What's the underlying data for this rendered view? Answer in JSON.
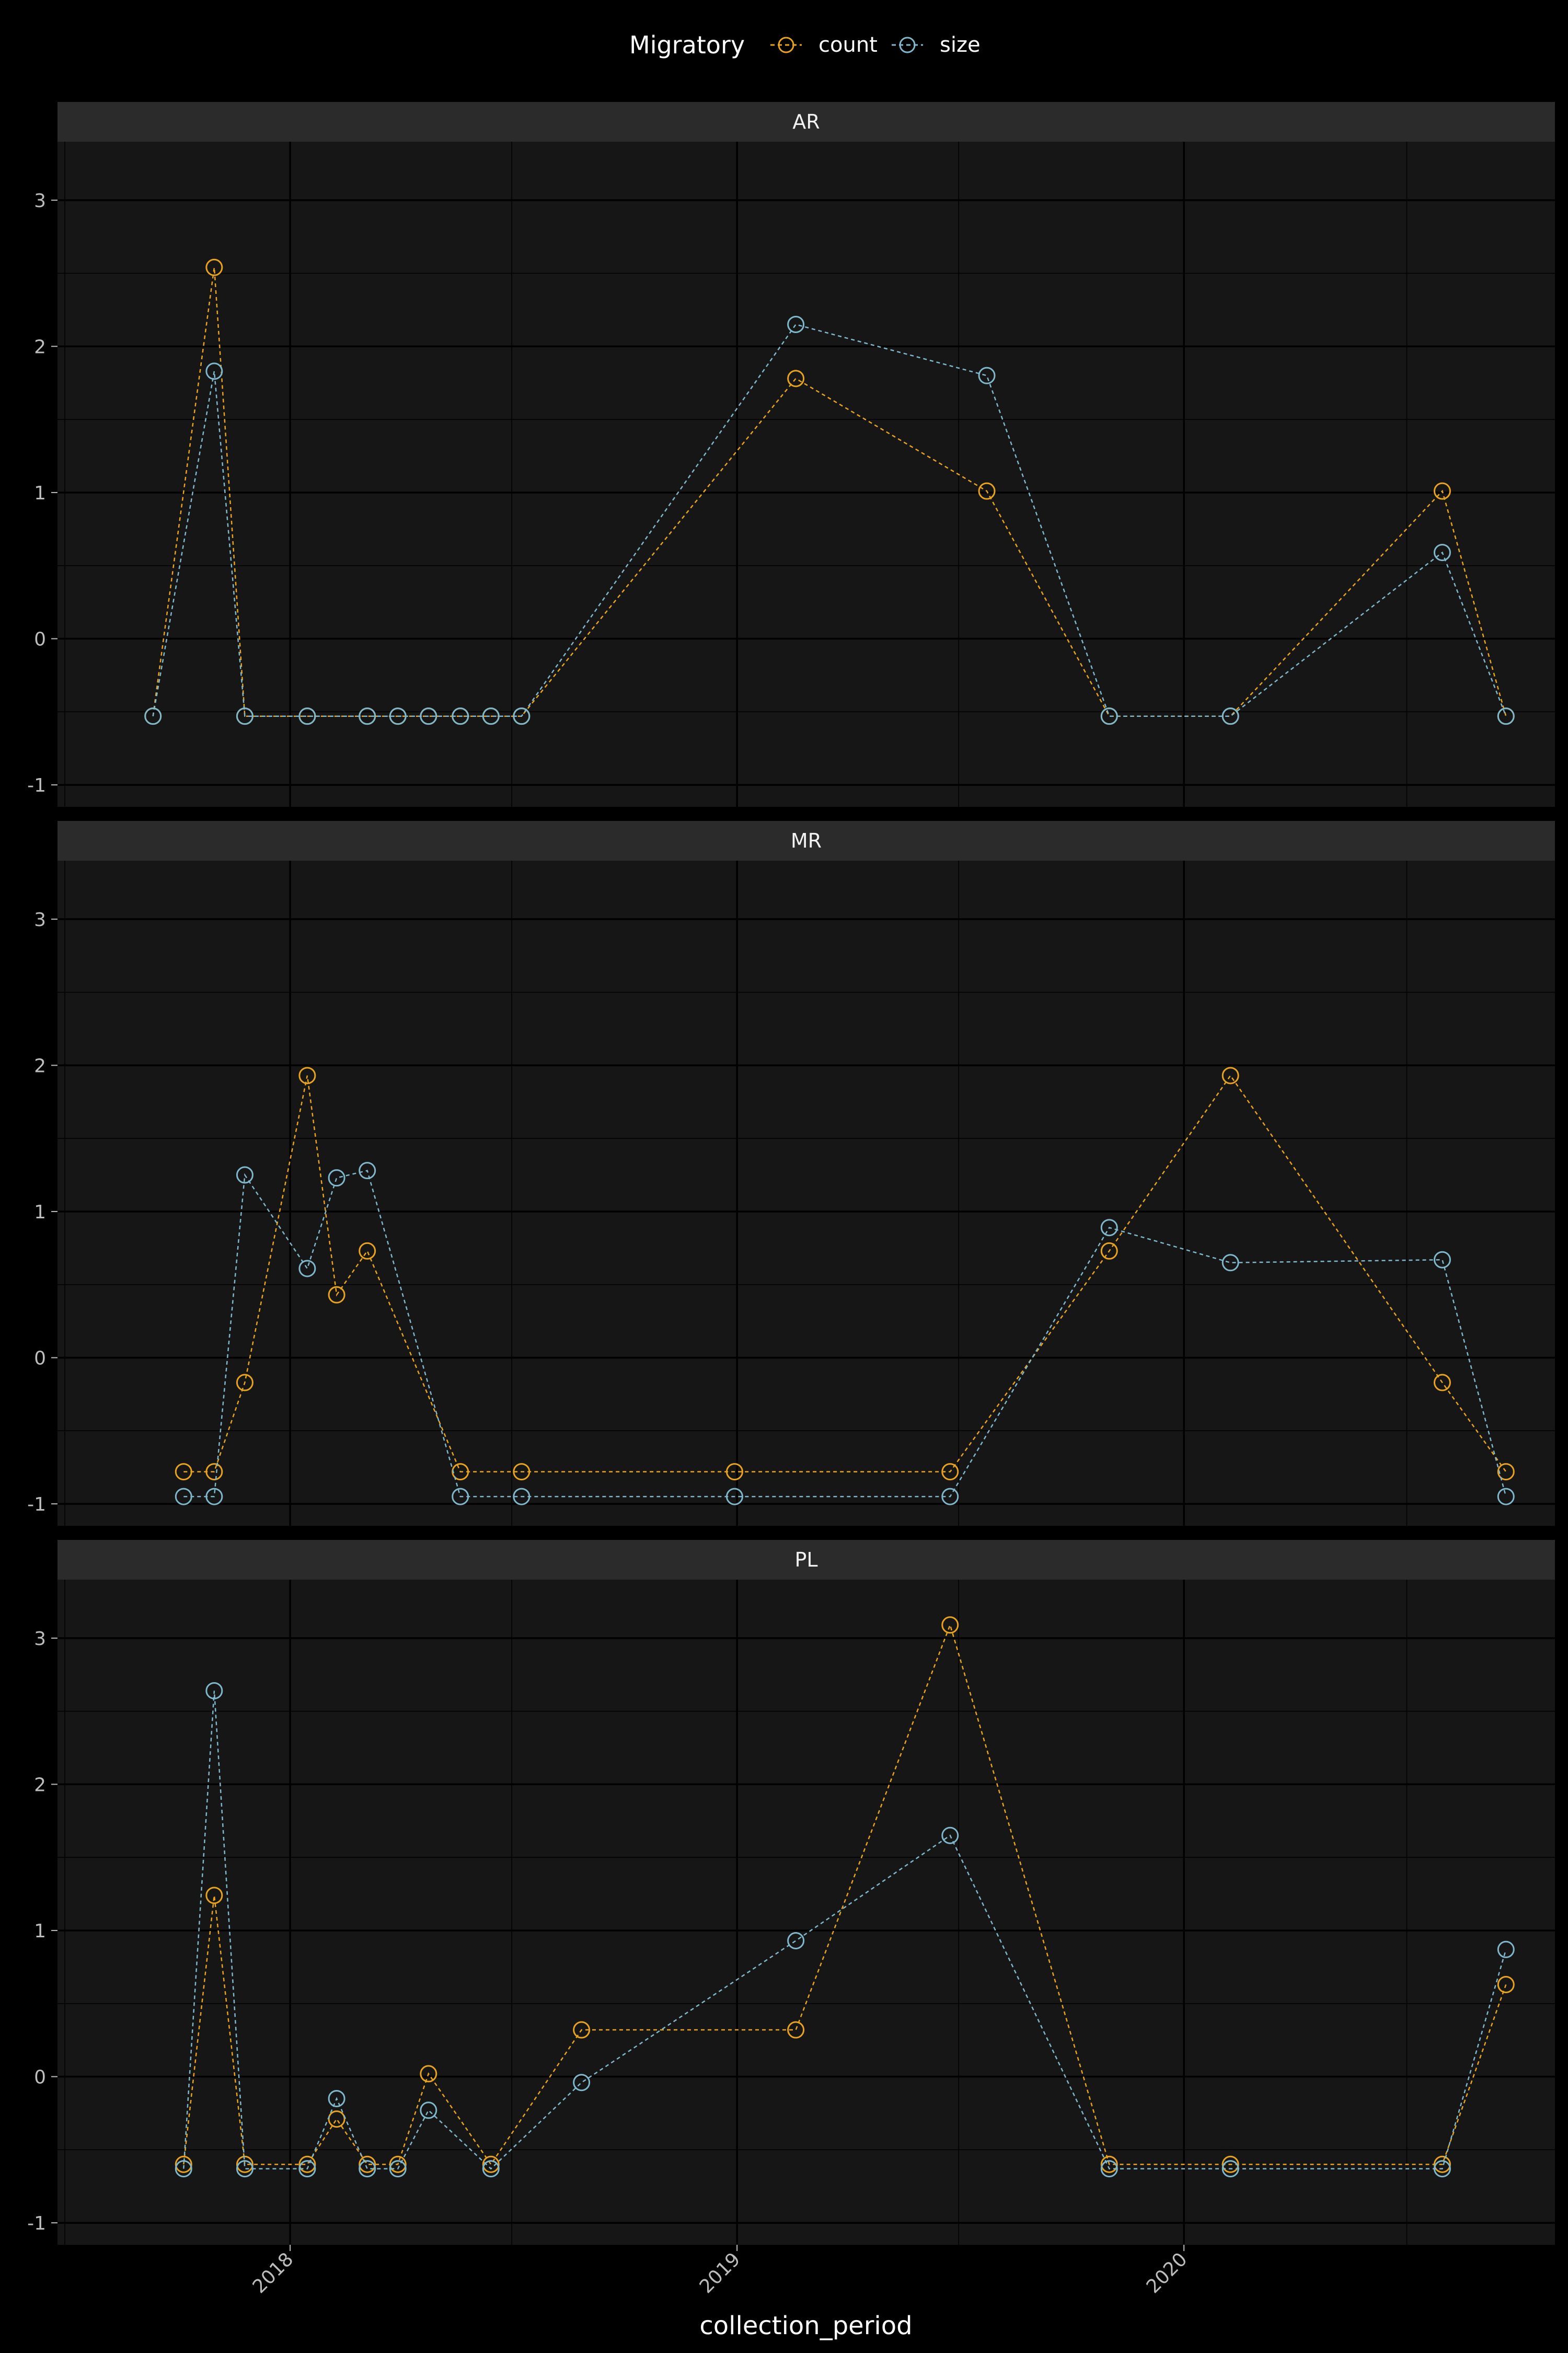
{
  "chart_data": {
    "type": "line",
    "xlabel": "collection_period",
    "ylabel": "",
    "legend": {
      "title": "Migratory",
      "position": "top",
      "entries": [
        {
          "name": "count",
          "color": "#e8a31a"
        },
        {
          "name": "size",
          "color": "#7fb7cc"
        }
      ]
    },
    "xlim": [
      "2017-06-25",
      "2020-10-30"
    ],
    "ylim": [
      -1.15,
      3.4
    ],
    "x_ticks": [
      "2018",
      "2019",
      "2020"
    ],
    "y_ticks": [
      "-1",
      "0",
      "1",
      "2",
      "3"
    ],
    "grid": true,
    "panels": [
      {
        "label": "AR",
        "series": [
          {
            "name": "count",
            "color": "#e8a31a",
            "points": [
              [
                "2017-09-11",
                -0.53
              ],
              [
                "2017-10-31",
                2.54
              ],
              [
                "2017-11-25",
                -0.53
              ],
              [
                "2018-01-15",
                -0.53
              ],
              [
                "2018-03-05",
                -0.53
              ],
              [
                "2018-03-30",
                -0.53
              ],
              [
                "2018-04-24",
                -0.53
              ],
              [
                "2018-05-20",
                -0.53
              ],
              [
                "2018-06-14",
                -0.53
              ],
              [
                "2018-07-09",
                -0.53
              ],
              [
                "2019-02-18",
                1.78
              ],
              [
                "2019-07-24",
                1.01
              ],
              [
                "2019-11-01",
                -0.53
              ],
              [
                "2020-02-08",
                -0.53
              ],
              [
                "2020-07-30",
                1.01
              ],
              [
                "2020-09-20",
                -0.53
              ]
            ]
          },
          {
            "name": "size",
            "color": "#7fb7cc",
            "points": [
              [
                "2017-09-11",
                -0.53
              ],
              [
                "2017-10-31",
                1.83
              ],
              [
                "2017-11-25",
                -0.53
              ],
              [
                "2018-01-15",
                -0.53
              ],
              [
                "2018-03-05",
                -0.53
              ],
              [
                "2018-03-30",
                -0.53
              ],
              [
                "2018-04-24",
                -0.53
              ],
              [
                "2018-05-20",
                -0.53
              ],
              [
                "2018-06-14",
                -0.53
              ],
              [
                "2018-07-09",
                -0.53
              ],
              [
                "2019-02-18",
                2.15
              ],
              [
                "2019-07-24",
                1.8
              ],
              [
                "2019-11-01",
                -0.53
              ],
              [
                "2020-02-08",
                -0.53
              ],
              [
                "2020-07-30",
                0.59
              ],
              [
                "2020-09-20",
                -0.53
              ]
            ]
          }
        ]
      },
      {
        "label": "MR",
        "series": [
          {
            "name": "count",
            "color": "#e8a31a",
            "points": [
              [
                "2017-10-06",
                -0.78
              ],
              [
                "2017-10-31",
                -0.78
              ],
              [
                "2017-11-25",
                -0.17
              ],
              [
                "2018-01-15",
                1.93
              ],
              [
                "2018-02-08",
                0.43
              ],
              [
                "2018-03-05",
                0.73
              ],
              [
                "2018-05-20",
                -0.78
              ],
              [
                "2018-07-09",
                -0.78
              ],
              [
                "2018-12-30",
                -0.78
              ],
              [
                "2019-06-24",
                -0.78
              ],
              [
                "2019-11-01",
                0.73
              ],
              [
                "2020-02-08",
                1.93
              ],
              [
                "2020-07-30",
                -0.17
              ],
              [
                "2020-09-20",
                -0.78
              ]
            ]
          },
          {
            "name": "size",
            "color": "#7fb7cc",
            "points": [
              [
                "2017-10-06",
                -0.95
              ],
              [
                "2017-10-31",
                -0.95
              ],
              [
                "2017-11-25",
                1.25
              ],
              [
                "2018-01-15",
                0.61
              ],
              [
                "2018-02-08",
                1.23
              ],
              [
                "2018-03-05",
                1.28
              ],
              [
                "2018-05-20",
                -0.95
              ],
              [
                "2018-07-09",
                -0.95
              ],
              [
                "2018-12-30",
                -0.95
              ],
              [
                "2019-06-24",
                -0.95
              ],
              [
                "2019-11-01",
                0.89
              ],
              [
                "2020-02-08",
                0.65
              ],
              [
                "2020-07-30",
                0.67
              ],
              [
                "2020-09-20",
                -0.95
              ]
            ]
          }
        ]
      },
      {
        "label": "PL",
        "series": [
          {
            "name": "count",
            "color": "#e8a31a",
            "points": [
              [
                "2017-10-06",
                -0.6
              ],
              [
                "2017-10-31",
                1.24
              ],
              [
                "2017-11-25",
                -0.6
              ],
              [
                "2018-01-15",
                -0.6
              ],
              [
                "2018-02-08",
                -0.29
              ],
              [
                "2018-03-05",
                -0.6
              ],
              [
                "2018-03-30",
                -0.6
              ],
              [
                "2018-04-24",
                0.02
              ],
              [
                "2018-06-14",
                -0.6
              ],
              [
                "2018-08-27",
                0.32
              ],
              [
                "2019-02-18",
                0.32
              ],
              [
                "2019-06-24",
                3.09
              ],
              [
                "2019-11-01",
                -0.6
              ],
              [
                "2020-02-08",
                -0.6
              ],
              [
                "2020-07-30",
                -0.6
              ],
              [
                "2020-09-20",
                0.63
              ]
            ]
          },
          {
            "name": "size",
            "color": "#7fb7cc",
            "points": [
              [
                "2017-10-06",
                -0.63
              ],
              [
                "2017-10-31",
                2.64
              ],
              [
                "2017-11-25",
                -0.63
              ],
              [
                "2018-01-15",
                -0.63
              ],
              [
                "2018-02-08",
                -0.15
              ],
              [
                "2018-03-05",
                -0.63
              ],
              [
                "2018-03-30",
                -0.63
              ],
              [
                "2018-04-24",
                -0.23
              ],
              [
                "2018-06-14",
                -0.63
              ],
              [
                "2018-08-27",
                -0.04
              ],
              [
                "2019-02-18",
                0.93
              ],
              [
                "2019-06-24",
                1.65
              ],
              [
                "2019-11-01",
                -0.63
              ],
              [
                "2020-02-08",
                -0.63
              ],
              [
                "2020-07-30",
                -0.63
              ],
              [
                "2020-09-20",
                0.87
              ]
            ]
          }
        ]
      }
    ]
  }
}
